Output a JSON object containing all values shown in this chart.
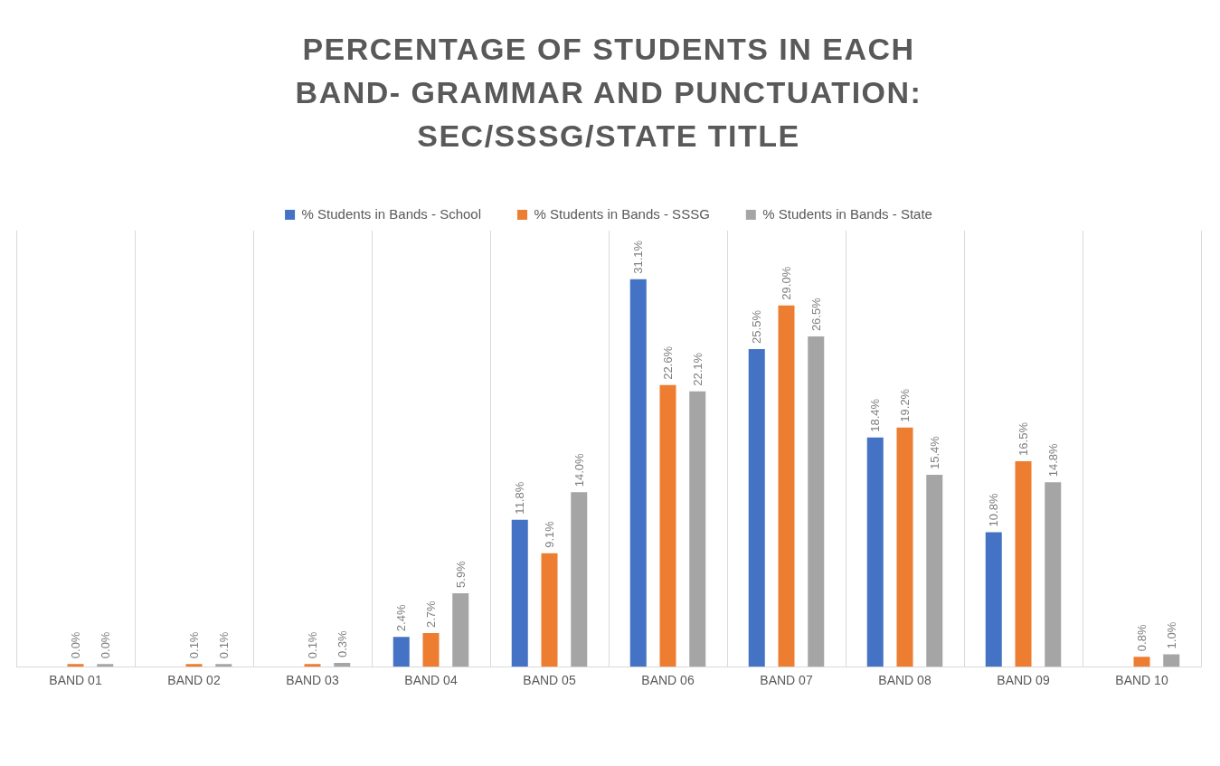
{
  "chart_data": {
    "type": "bar",
    "title": "PERCENTAGE OF STUDENTS IN EACH BAND- GRAMMAR AND PUNCTUATION: SEC/SSSG/STATE TITLE",
    "categories": [
      "BAND 01",
      "BAND 02",
      "BAND 03",
      "BAND 04",
      "BAND 05",
      "BAND 06",
      "BAND 07",
      "BAND 08",
      "BAND 09",
      "BAND 10"
    ],
    "series": [
      {
        "name": "% Students in Bands - School",
        "color": "#4472c4",
        "values": [
          null,
          null,
          null,
          2.4,
          11.8,
          31.1,
          25.5,
          18.4,
          10.8,
          null
        ],
        "value_labels": [
          null,
          null,
          null,
          "2.4%",
          "11.8%",
          "31.1%",
          "25.5%",
          "18.4%",
          "10.8%",
          null
        ]
      },
      {
        "name": "% Students in Bands - SSSG",
        "color": "#ed7d31",
        "values": [
          0.0,
          0.1,
          0.1,
          2.7,
          9.1,
          22.6,
          29.0,
          19.2,
          16.5,
          0.8
        ],
        "value_labels": [
          "0.0%",
          "0.1%",
          "0.1%",
          "2.7%",
          "9.1%",
          "22.6%",
          "29.0%",
          "19.2%",
          "16.5%",
          "0.8%"
        ]
      },
      {
        "name": "% Students in Bands - State",
        "color": "#a5a5a5",
        "values": [
          0.0,
          0.1,
          0.3,
          5.9,
          14.0,
          22.1,
          26.5,
          15.4,
          14.8,
          1.0
        ],
        "value_labels": [
          "0.0%",
          "0.1%",
          "0.3%",
          "5.9%",
          "14.0%",
          "22.1%",
          "26.5%",
          "15.4%",
          "14.8%",
          "1.0%"
        ]
      }
    ],
    "grid": "x",
    "legend": "top"
  }
}
